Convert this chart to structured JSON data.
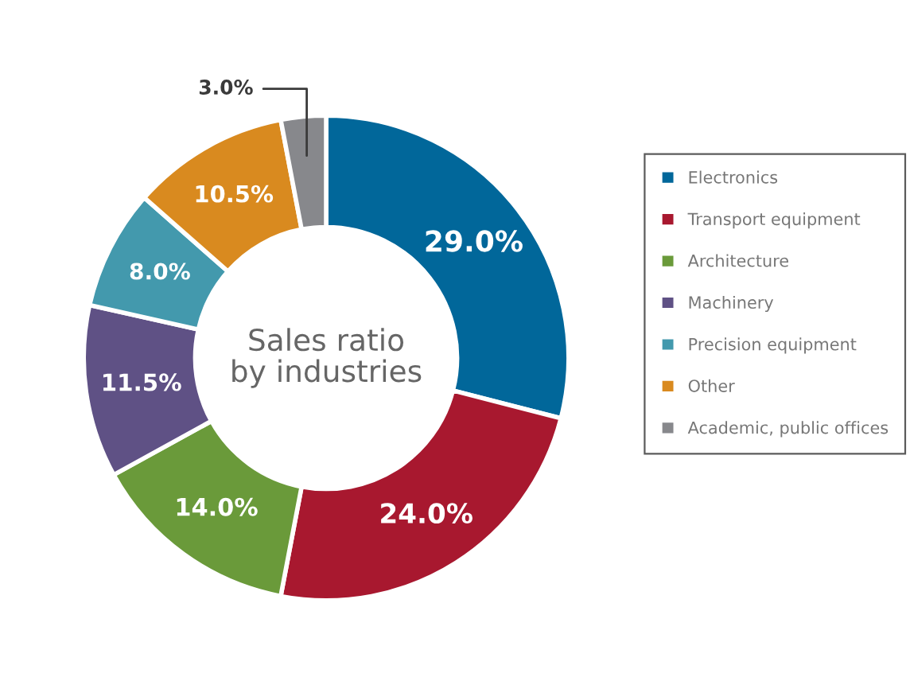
{
  "chart_data": {
    "type": "donut",
    "title": "Sales ratio\nby industries",
    "categories": [
      "Electronics",
      "Transport equipment",
      "Architecture",
      "Machinery",
      "Precision equipment",
      "Other",
      "Academic, public offices"
    ],
    "values": [
      29.0,
      24.0,
      14.0,
      11.5,
      8.0,
      10.5,
      3.0
    ],
    "colors": [
      "#01679a",
      "#a8182f",
      "#6a9a3a",
      "#5f5185",
      "#4399ad",
      "#d98a1f",
      "#87888c"
    ],
    "value_labels": [
      "29.0%",
      "24.0%",
      "14.0%",
      "11.5%",
      "8.0%",
      "10.5%",
      "3.0%"
    ],
    "legend": "right"
  }
}
